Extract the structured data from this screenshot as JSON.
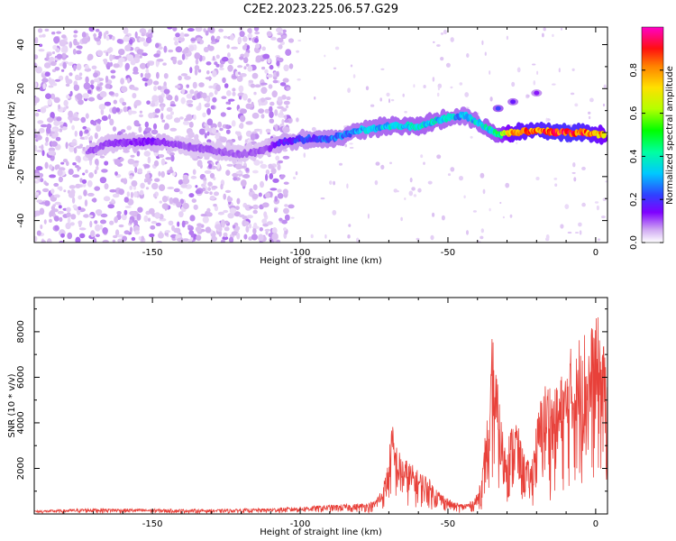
{
  "title": "C2E2.2023.225.06.57.G29",
  "chart_data": [
    {
      "type": "heatmap",
      "xlabel": "Height of straight line (km)",
      "ylabel": "Frequency (Hz)",
      "xlim": [
        -190,
        4
      ],
      "ylim": [
        -50,
        48
      ],
      "xticks": [
        -150,
        -100,
        -50,
        0
      ],
      "yticks": [
        -40,
        -20,
        0,
        20,
        40
      ],
      "colorbar": {
        "label": "Normalized spectral amplitude",
        "range": [
          0,
          1
        ],
        "ticks": [
          0.0,
          0.2,
          0.4,
          0.6,
          0.8
        ],
        "colormap": [
          "#ffffff",
          "#d6b6f0",
          "#a45cf0",
          "#7f00ff",
          "#3050ff",
          "#00e0ff",
          "#00ff40",
          "#c8ff00",
          "#ffdc00",
          "#ff8000",
          "#ff0000",
          "#ff00c0"
        ]
      },
      "noise_region": {
        "x": [
          -190,
          -103
        ],
        "freq": [
          -50,
          48
        ],
        "amplitude": 0.15
      },
      "ridge": [
        {
          "x": -172,
          "freq": -9,
          "amp": 0.2
        },
        {
          "x": -165,
          "freq": -5,
          "amp": 0.22
        },
        {
          "x": -150,
          "freq": -4,
          "amp": 0.28
        },
        {
          "x": -140,
          "freq": -6,
          "amp": 0.2
        },
        {
          "x": -120,
          "freq": -10,
          "amp": 0.2
        },
        {
          "x": -112,
          "freq": -8,
          "amp": 0.2
        },
        {
          "x": -108,
          "freq": -5,
          "amp": 0.3
        },
        {
          "x": -100,
          "freq": -3,
          "amp": 0.35
        },
        {
          "x": -90,
          "freq": -3,
          "amp": 0.4
        },
        {
          "x": -80,
          "freq": 1,
          "amp": 0.45
        },
        {
          "x": -70,
          "freq": 3,
          "amp": 0.48
        },
        {
          "x": -60,
          "freq": 3,
          "amp": 0.5
        },
        {
          "x": -50,
          "freq": 7,
          "amp": 0.48
        },
        {
          "x": -44,
          "freq": 8,
          "amp": 0.45
        },
        {
          "x": -38,
          "freq": 3,
          "amp": 0.5
        },
        {
          "x": -33,
          "freq": -1,
          "amp": 0.55
        },
        {
          "x": -28,
          "freq": 0,
          "amp": 0.85
        },
        {
          "x": -20,
          "freq": 1,
          "amp": 0.9
        },
        {
          "x": -10,
          "freq": 0,
          "amp": 0.95
        },
        {
          "x": -4,
          "freq": 0,
          "amp": 0.92
        },
        {
          "x": 3,
          "freq": -1,
          "amp": 0.8
        }
      ],
      "upper_branch": [
        {
          "x": -33,
          "freq": 11,
          "amp": 0.35
        },
        {
          "x": -28,
          "freq": 14,
          "amp": 0.3
        },
        {
          "x": -20,
          "freq": 18,
          "amp": 0.25
        }
      ]
    },
    {
      "type": "line",
      "xlabel": "Height of straight line (km)",
      "ylabel": "SNR (10 * v/v)",
      "xlim": [
        -190,
        4
      ],
      "ylim": [
        0,
        9500
      ],
      "xticks": [
        -150,
        -100,
        -50,
        0
      ],
      "yticks": [
        2000,
        4000,
        6000,
        8000
      ],
      "color": "#e8413a",
      "envelope": [
        [
          -190,
          150
        ],
        [
          -170,
          250
        ],
        [
          -150,
          220
        ],
        [
          -130,
          200
        ],
        [
          -110,
          250
        ],
        [
          -100,
          320
        ],
        [
          -90,
          400
        ],
        [
          -80,
          450
        ],
        [
          -75,
          550
        ],
        [
          -72,
          1200
        ],
        [
          -70,
          2500
        ],
        [
          -69,
          4200
        ],
        [
          -68,
          3300
        ],
        [
          -66,
          2600
        ],
        [
          -63,
          2300
        ],
        [
          -60,
          1900
        ],
        [
          -57,
          1700
        ],
        [
          -55,
          1300
        ],
        [
          -52,
          900
        ],
        [
          -48,
          500
        ],
        [
          -45,
          450
        ],
        [
          -42,
          550
        ],
        [
          -40,
          900
        ],
        [
          -38,
          2300
        ],
        [
          -37,
          4500
        ],
        [
          -36,
          3600
        ],
        [
          -35,
          8200
        ],
        [
          -34,
          6800
        ],
        [
          -33,
          5500
        ],
        [
          -31,
          3200
        ],
        [
          -29,
          3700
        ],
        [
          -27,
          4400
        ],
        [
          -25,
          3000
        ],
        [
          -22,
          2100
        ],
        [
          -20,
          4100
        ],
        [
          -18,
          5600
        ],
        [
          -16,
          6000
        ],
        [
          -14,
          5400
        ],
        [
          -12,
          6100
        ],
        [
          -10,
          6400
        ],
        [
          -8,
          7600
        ],
        [
          -6,
          6900
        ],
        [
          -5,
          9300
        ],
        [
          -3,
          7500
        ],
        [
          -1,
          8500
        ],
        [
          1,
          8700
        ],
        [
          3,
          7300
        ],
        [
          4,
          7800
        ]
      ]
    }
  ]
}
